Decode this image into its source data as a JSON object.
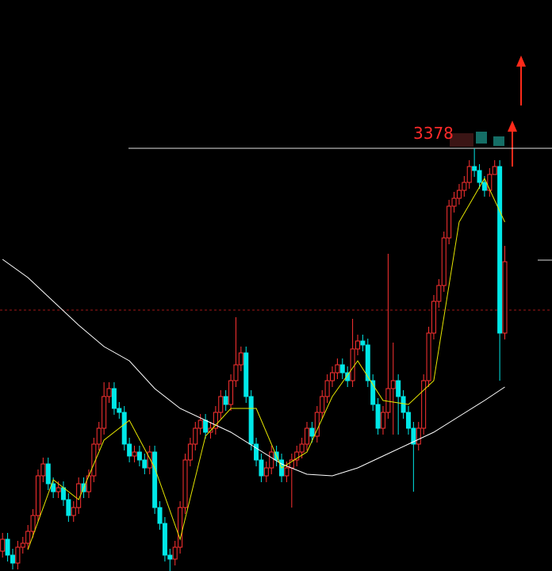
{
  "chart_data": {
    "type": "candlestick",
    "ylim": [
      2845,
      3565
    ],
    "xlim": [
      -0.5,
      108.3
    ],
    "up_color": "#ff3232",
    "down_color": "#00e8e8",
    "level_line": 3378,
    "ref_line": 3174,
    "ohlc": [
      [
        2870,
        2893,
        2862,
        2885
      ],
      [
        2885,
        2893,
        2857,
        2865
      ],
      [
        2865,
        2873,
        2847,
        2855
      ],
      [
        2855,
        2883,
        2847,
        2875
      ],
      [
        2875,
        2888,
        2867,
        2880
      ],
      [
        2880,
        2903,
        2872,
        2895
      ],
      [
        2895,
        2923,
        2887,
        2915
      ],
      [
        2915,
        2973,
        2907,
        2965
      ],
      [
        2965,
        2988,
        2957,
        2980
      ],
      [
        2980,
        2988,
        2947,
        2955
      ],
      [
        2955,
        2963,
        2937,
        2945
      ],
      [
        2945,
        2958,
        2937,
        2950
      ],
      [
        2950,
        2958,
        2927,
        2935
      ],
      [
        2935,
        2943,
        2907,
        2915
      ],
      [
        2915,
        2933,
        2907,
        2925
      ],
      [
        2925,
        2963,
        2917,
        2955
      ],
      [
        2955,
        2963,
        2937,
        2945
      ],
      [
        2945,
        2973,
        2937,
        2965
      ],
      [
        2965,
        3013,
        2957,
        3005
      ],
      [
        3005,
        3033,
        2997,
        3025
      ],
      [
        3025,
        3083,
        3017,
        3065
      ],
      [
        3065,
        3083,
        3057,
        3075
      ],
      [
        3075,
        3083,
        3042,
        3050
      ],
      [
        3050,
        3058,
        3037,
        3045
      ],
      [
        3045,
        3053,
        2997,
        3005
      ],
      [
        3005,
        3013,
        2982,
        2990
      ],
      [
        2990,
        3003,
        2982,
        2995
      ],
      [
        2995,
        3003,
        2977,
        2985
      ],
      [
        2985,
        2993,
        2967,
        2975
      ],
      [
        2975,
        3003,
        2967,
        2995
      ],
      [
        2995,
        3003,
        2917,
        2925
      ],
      [
        2925,
        2933,
        2897,
        2905
      ],
      [
        2905,
        2913,
        2857,
        2865
      ],
      [
        2865,
        2873,
        2845,
        2860
      ],
      [
        2860,
        2883,
        2852,
        2875
      ],
      [
        2875,
        2933,
        2867,
        2925
      ],
      [
        2925,
        2993,
        2917,
        2985
      ],
      [
        2985,
        3013,
        2977,
        3005
      ],
      [
        3005,
        3033,
        2997,
        3025
      ],
      [
        3025,
        3043,
        3017,
        3035
      ],
      [
        3035,
        3043,
        3012,
        3020
      ],
      [
        3020,
        3033,
        3012,
        3025
      ],
      [
        3025,
        3053,
        3017,
        3045
      ],
      [
        3045,
        3073,
        3037,
        3065
      ],
      [
        3065,
        3073,
        3047,
        3055
      ],
      [
        3055,
        3093,
        3047,
        3085
      ],
      [
        3085,
        3165,
        3077,
        3105
      ],
      [
        3105,
        3128,
        3097,
        3120
      ],
      [
        3120,
        3128,
        3057,
        3065
      ],
      [
        3065,
        3073,
        2997,
        3005
      ],
      [
        3005,
        3013,
        2977,
        2985
      ],
      [
        2985,
        2993,
        2957,
        2965
      ],
      [
        2965,
        2983,
        2957,
        2975
      ],
      [
        2975,
        3003,
        2967,
        2995
      ],
      [
        2995,
        3003,
        2977,
        2985
      ],
      [
        2985,
        2993,
        2957,
        2965
      ],
      [
        2965,
        2983,
        2957,
        2975
      ],
      [
        2975,
        2993,
        2925,
        2985
      ],
      [
        2985,
        3003,
        2977,
        2995
      ],
      [
        2995,
        3013,
        2987,
        3005
      ],
      [
        3005,
        3033,
        2997,
        3025
      ],
      [
        3025,
        3033,
        3007,
        3015
      ],
      [
        3015,
        3053,
        3007,
        3045
      ],
      [
        3045,
        3073,
        3037,
        3065
      ],
      [
        3065,
        3093,
        3057,
        3085
      ],
      [
        3085,
        3103,
        3077,
        3095
      ],
      [
        3095,
        3113,
        3087,
        3105
      ],
      [
        3105,
        3113,
        3087,
        3095
      ],
      [
        3095,
        3103,
        3077,
        3085
      ],
      [
        3085,
        3163,
        3077,
        3125
      ],
      [
        3125,
        3143,
        3117,
        3135
      ],
      [
        3135,
        3143,
        3122,
        3130
      ],
      [
        3130,
        3138,
        3077,
        3085
      ],
      [
        3085,
        3093,
        3047,
        3055
      ],
      [
        3055,
        3063,
        3017,
        3025
      ],
      [
        3025,
        3053,
        3017,
        3045
      ],
      [
        3045,
        3245,
        3037,
        3075
      ],
      [
        3075,
        3133,
        3017,
        3085
      ],
      [
        3085,
        3093,
        3017,
        3065
      ],
      [
        3065,
        3073,
        3037,
        3045
      ],
      [
        3045,
        3053,
        3017,
        3025
      ],
      [
        3025,
        3033,
        2945,
        3005
      ],
      [
        3005,
        3033,
        2997,
        3025
      ],
      [
        3025,
        3093,
        3017,
        3085
      ],
      [
        3085,
        3153,
        3077,
        3145
      ],
      [
        3145,
        3193,
        3137,
        3185
      ],
      [
        3185,
        3213,
        3177,
        3205
      ],
      [
        3205,
        3273,
        3197,
        3265
      ],
      [
        3265,
        3313,
        3257,
        3305
      ],
      [
        3305,
        3323,
        3297,
        3315
      ],
      [
        3315,
        3333,
        3307,
        3325
      ],
      [
        3325,
        3343,
        3317,
        3335
      ],
      [
        3335,
        3363,
        3327,
        3355
      ],
      [
        3355,
        3378,
        3342,
        3350
      ],
      [
        3350,
        3358,
        3327,
        3335
      ],
      [
        3335,
        3343,
        3317,
        3325
      ],
      [
        3325,
        3353,
        3317,
        3345
      ],
      [
        3345,
        3363,
        3347,
        3355
      ],
      [
        3355,
        3363,
        3085,
        3145
      ],
      [
        3145,
        3255,
        3137,
        3235
      ]
    ],
    "series": [
      {
        "color": "#ffffff",
        "x": [
          0,
          5,
          10,
          15,
          20,
          25,
          30,
          35,
          40,
          45,
          50,
          55,
          60,
          65,
          70,
          75,
          80,
          85,
          90,
          95,
          99
        ],
        "values": [
          3238,
          3215,
          3185,
          3155,
          3128,
          3110,
          3075,
          3050,
          3035,
          3020,
          3000,
          2980,
          2967,
          2965,
          2975,
          2990,
          3005,
          3020,
          3040,
          3060,
          3077
        ]
      },
      {
        "color": "#e6e600",
        "x": [
          5,
          10,
          15,
          20,
          25,
          30,
          35,
          40,
          45,
          50,
          55,
          60,
          65,
          70,
          75,
          80,
          85,
          90,
          95,
          99
        ],
        "values": [
          2872,
          2960,
          2935,
          3010,
          3035,
          2975,
          2885,
          3015,
          3050,
          3050,
          2975,
          2995,
          3065,
          3110,
          3060,
          3055,
          3085,
          3285,
          3340,
          3285
        ]
      }
    ]
  }
}
